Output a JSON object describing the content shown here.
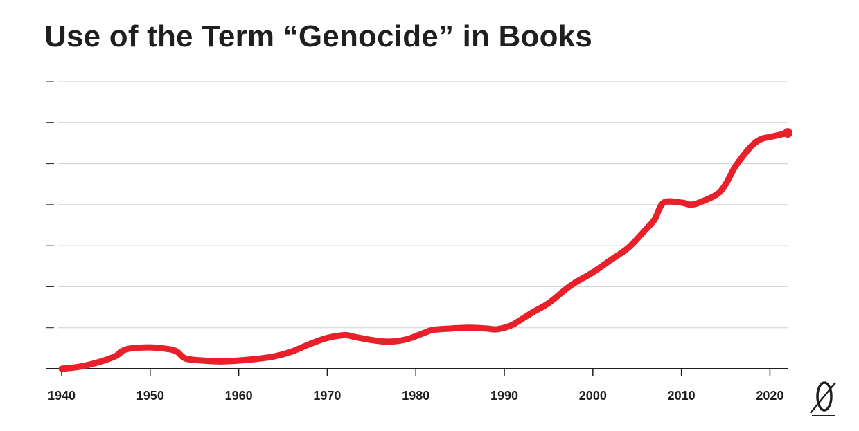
{
  "title": "Use of the Term “Genocide” in Books",
  "colors": {
    "line": "#e8202a",
    "grid": "#cfcfcf",
    "axis": "#1f1f1f",
    "text": "#1f1f1f"
  },
  "logo": {
    "icon": "publisher-logo-icon"
  },
  "chart_data": {
    "type": "line",
    "title": "Use of the Term “Genocide” in Books",
    "xlabel": "",
    "ylabel": "",
    "xlim": [
      1940,
      2022
    ],
    "ylim": [
      0,
      7
    ],
    "grid": true,
    "y_tick_labels_shown": false,
    "x_ticks": [
      1940,
      1950,
      1960,
      1970,
      1980,
      1990,
      2000,
      2010,
      2020
    ],
    "x_tick_labels": [
      "1940",
      "1950",
      "1960",
      "1970",
      "1980",
      "1990",
      "2000",
      "2010",
      "2020"
    ],
    "series": [
      {
        "x": [
          1940,
          1942,
          1944,
          1946,
          1947,
          1948,
          1950,
          1952,
          1953,
          1954,
          1956,
          1958,
          1960,
          1962,
          1964,
          1966,
          1968,
          1970,
          1972,
          1973,
          1975,
          1977,
          1979,
          1981,
          1982,
          1984,
          1986,
          1988,
          1989,
          1990,
          1991,
          1993,
          1995,
          1997,
          1998,
          2000,
          2002,
          2004,
          2006,
          2007,
          2008,
          2010,
          2011,
          2012,
          2014,
          2015,
          2016,
          2017,
          2018,
          2019,
          2020,
          2021,
          2022
        ],
        "y": [
          0.0,
          0.05,
          0.15,
          0.3,
          0.45,
          0.5,
          0.52,
          0.48,
          0.42,
          0.25,
          0.2,
          0.18,
          0.2,
          0.24,
          0.3,
          0.42,
          0.6,
          0.75,
          0.82,
          0.78,
          0.7,
          0.66,
          0.72,
          0.88,
          0.95,
          0.98,
          1.0,
          0.98,
          0.96,
          1.0,
          1.08,
          1.35,
          1.6,
          1.95,
          2.1,
          2.35,
          2.65,
          2.95,
          3.4,
          3.65,
          4.05,
          4.05,
          4.0,
          4.05,
          4.25,
          4.5,
          4.9,
          5.2,
          5.45,
          5.6,
          5.65,
          5.7,
          5.75
        ]
      }
    ]
  }
}
